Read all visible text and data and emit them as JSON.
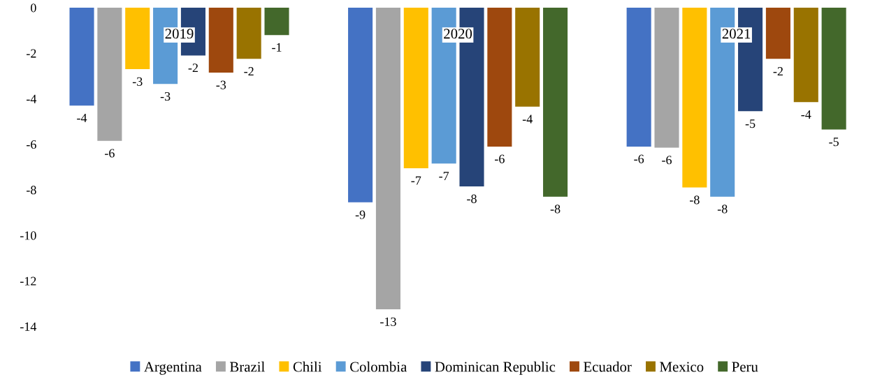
{
  "chart_data": {
    "type": "bar",
    "categories": [
      "2019",
      "2020",
      "2021"
    ],
    "series": [
      {
        "name": "Argentina",
        "color": "#4472c4",
        "values": [
          -4.3,
          -8.55,
          -6.1
        ],
        "value_labels": [
          "-4",
          "-9",
          "-6"
        ]
      },
      {
        "name": "Brazil",
        "color": "#a5a5a5",
        "values": [
          -5.85,
          -13.25,
          -6.15
        ],
        "value_labels": [
          "-6",
          "-13",
          "-6"
        ]
      },
      {
        "name": "Chili",
        "color": "#ffc000",
        "values": [
          -2.7,
          -7.05,
          -7.9
        ],
        "value_labels": [
          "-3",
          "-7",
          "-8"
        ]
      },
      {
        "name": "Colombia",
        "color": "#5b9bd5",
        "values": [
          -3.35,
          -6.85,
          -8.3
        ],
        "value_labels": [
          "-3",
          "-7",
          "-8"
        ]
      },
      {
        "name": "Dominican Republic",
        "color": "#264478",
        "values": [
          -2.1,
          -7.85,
          -4.55
        ],
        "value_labels": [
          "-2",
          "-8",
          "-5"
        ]
      },
      {
        "name": "Ecuador",
        "color": "#9e480e",
        "values": [
          -2.85,
          -6.1,
          -2.25
        ],
        "value_labels": [
          "-3",
          "-6",
          "-2"
        ]
      },
      {
        "name": "Mexico",
        "color": "#997300",
        "values": [
          -2.25,
          -4.35,
          -4.15
        ],
        "value_labels": [
          "-2",
          "-4",
          "-4"
        ]
      },
      {
        "name": "Peru",
        "color": "#43682b",
        "values": [
          -1.2,
          -8.3,
          -5.35
        ],
        "value_labels": [
          "-1",
          "-8",
          "-5"
        ]
      }
    ],
    "ylim": [
      -14,
      0
    ],
    "yticks": [
      0,
      -2,
      -4,
      -6,
      -8,
      -10,
      -12,
      -14
    ],
    "legend": "bottom",
    "grid": false
  }
}
